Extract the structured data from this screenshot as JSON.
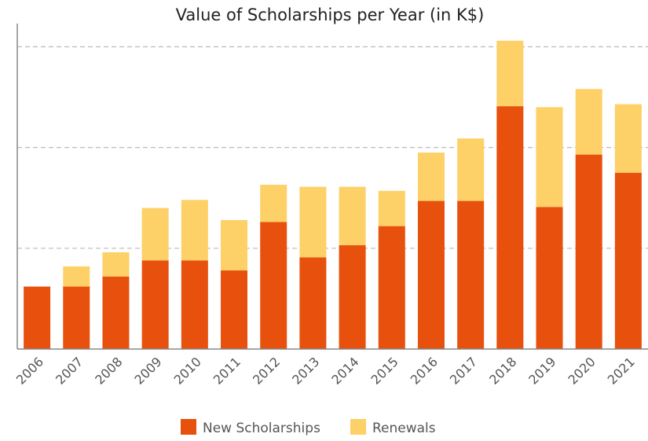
{
  "chart_data": {
    "type": "bar",
    "stacked": true,
    "title": "Value of Scholarships per Year (in K$)",
    "categories": [
      "2006",
      "2007",
      "2008",
      "2009",
      "2010",
      "2011",
      "2012",
      "2013",
      "2014",
      "2015",
      "2016",
      "2017",
      "2018",
      "2019",
      "2020",
      "2021"
    ],
    "series": [
      {
        "name": "New Scholarships",
        "color": "#e8500e",
        "values": [
          62,
          62,
          72,
          88,
          88,
          78,
          126,
          91,
          103,
          122,
          147,
          147,
          241,
          141,
          193,
          175
        ]
      },
      {
        "name": "Renewals",
        "color": "#fdd068",
        "values": [
          0,
          20,
          24,
          52,
          60,
          50,
          37,
          70,
          58,
          35,
          48,
          62,
          65,
          99,
          65,
          68
        ]
      }
    ],
    "ylim": [
      0,
      323
    ],
    "yticks": [
      0,
      100,
      200,
      300
    ],
    "grid": true,
    "legend": "bottom"
  }
}
